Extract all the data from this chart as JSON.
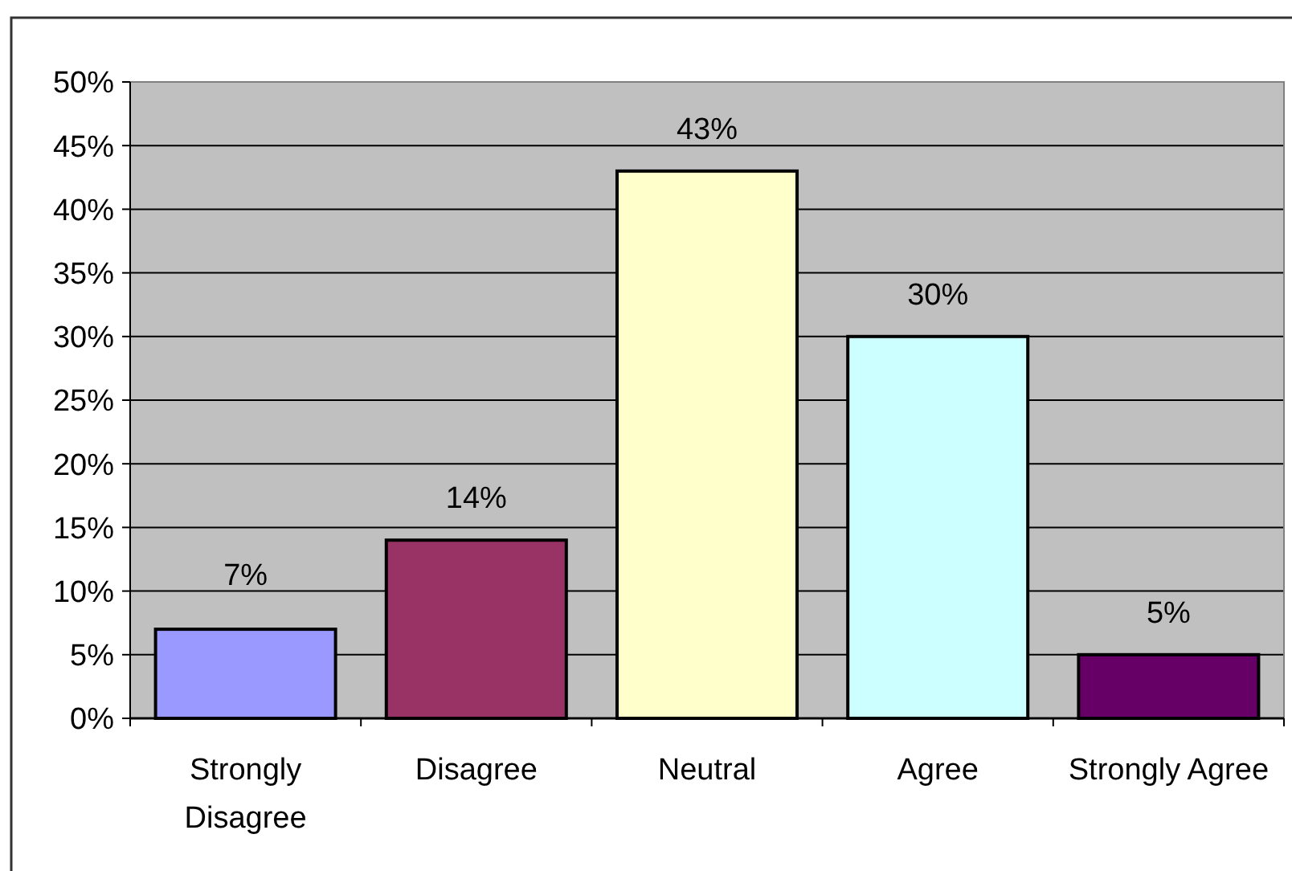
{
  "chart_data": {
    "type": "bar",
    "categories": [
      "Strongly Disagree",
      "Disagree",
      "Neutral",
      "Agree",
      "Strongly Agree"
    ],
    "values": [
      7,
      14,
      43,
      30,
      5
    ],
    "colors": [
      "#9999ff",
      "#993366",
      "#ffffcc",
      "#ccffff",
      "#660066"
    ],
    "value_labels": [
      "7%",
      "14%",
      "43%",
      "30%",
      "5%"
    ],
    "ylim": [
      0,
      50
    ],
    "yticks": [
      {
        "value": 0,
        "label": "0%"
      },
      {
        "value": 5,
        "label": "5%"
      },
      {
        "value": 10,
        "label": "10%"
      },
      {
        "value": 15,
        "label": "15%"
      },
      {
        "value": 20,
        "label": "20%"
      },
      {
        "value": 25,
        "label": "25%"
      },
      {
        "value": 30,
        "label": "30%"
      },
      {
        "value": 35,
        "label": "35%"
      },
      {
        "value": 40,
        "label": "40%"
      },
      {
        "value": 45,
        "label": "45%"
      },
      {
        "value": 50,
        "label": "50%"
      }
    ],
    "grid": "y"
  }
}
